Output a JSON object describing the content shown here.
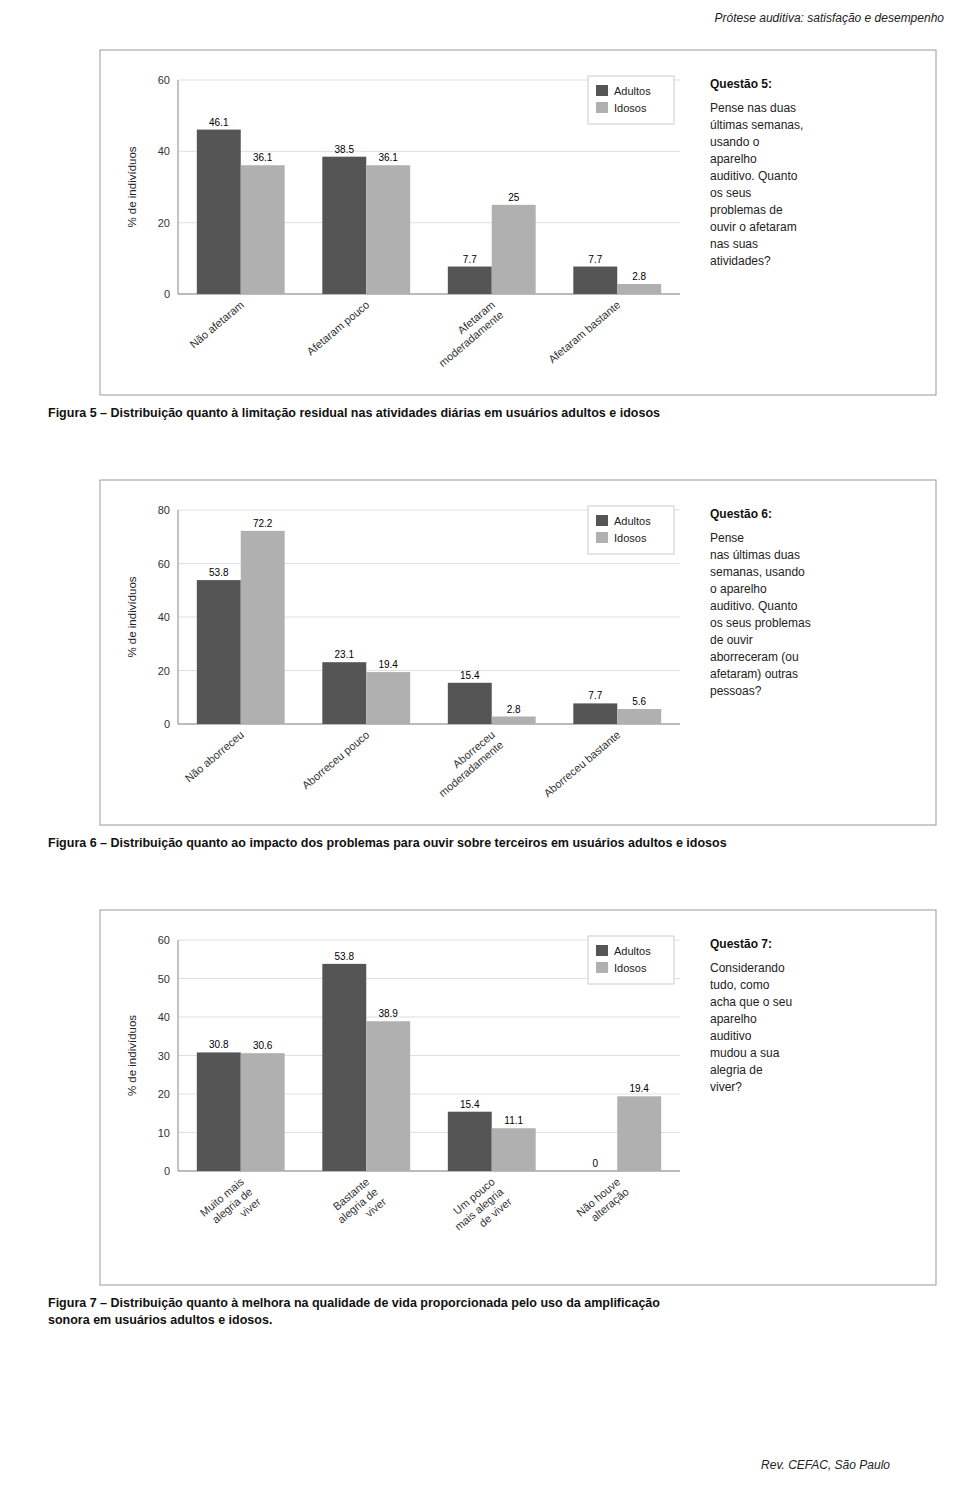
{
  "header": "Prótese auditiva: satisfação e desempenho",
  "footer": "Rev. CEFAC, São Paulo",
  "chart_data": [
    {
      "type": "bar",
      "title": "Questão 5:",
      "subtitle": "Pense nas duas\núltimas semanas,\nusando o\naparelho\nauditivo. Quanto\nos seus\nproblemas de\nouvir o afetaram\nnas suas\natividades?",
      "caption": "Figura 5 – Distribuição quanto à limitação residual nas atividades diárias em usuários adultos e idosos",
      "categories": [
        "Não afetaram",
        "Afetaram pouco",
        "Afetaram\nmoderadamente",
        "Afetaram bastante"
      ],
      "series": [
        {
          "name": "Adultos",
          "color": "#555555",
          "values": [
            46.1,
            38.5,
            7.7,
            7.7
          ]
        },
        {
          "name": "Idosos",
          "color": "#b0b0b0",
          "values": [
            36.1,
            36.1,
            25.0,
            2.8
          ]
        }
      ],
      "ylabel": "% de indivíduos",
      "ylim": [
        0,
        60
      ],
      "yticks": [
        0,
        20,
        40,
        60
      ],
      "grid": true,
      "legend": "upper right",
      "data_labels": true
    },
    {
      "type": "bar",
      "title": "Questão 6:",
      "subtitle": "Pense\nnas últimas duas\nsemanas, usando\no aparelho\nauditivo. Quanto\nos seus problemas\nde ouvir\naborreceram (ou\nafetaram) outras\npessoas?",
      "caption": "Figura 6 – Distribuição quanto ao impacto dos problemas para ouvir sobre terceiros em usuários adultos e idosos",
      "categories": [
        "Não aborreceu",
        "Aborreceu pouco",
        "Aborreceu\nmoderadamente",
        "Aborreceu bastante"
      ],
      "series": [
        {
          "name": "Adultos",
          "color": "#555555",
          "values": [
            53.8,
            23.1,
            15.4,
            7.7
          ]
        },
        {
          "name": "Idosos",
          "color": "#b0b0b0",
          "values": [
            72.2,
            19.4,
            2.8,
            5.6
          ]
        }
      ],
      "ylabel": "% de indivíduos",
      "ylim": [
        0,
        80
      ],
      "yticks": [
        0,
        20,
        40,
        60,
        80
      ],
      "grid": true,
      "legend": "upper right",
      "data_labels": true
    },
    {
      "type": "bar",
      "title": "Questão 7:",
      "subtitle": "Considerando\ntudo, como\nacha que o seu\naparelho\nauditivo\nmudou a sua\nalegria de\nviver?",
      "caption": "Figura 7 – Distribuição quanto à melhora na qualidade de vida proporcionada pelo uso da amplificação\nsonora em usuários adultos e idosos.",
      "categories": [
        "Muito mais\nalegria de\nviver",
        "Bastante\nalegria de\nviver",
        "Um pouco\nmais alegria\nde viver",
        "Não houve\nalteração"
      ],
      "series": [
        {
          "name": "Adultos",
          "color": "#555555",
          "values": [
            30.8,
            53.8,
            15.4,
            0
          ]
        },
        {
          "name": "Idosos",
          "color": "#b0b0b0",
          "values": [
            30.6,
            38.9,
            11.1,
            19.4
          ]
        }
      ],
      "ylabel": "% de indivíduos",
      "ylim": [
        0,
        60
      ],
      "yticks": [
        0,
        10,
        20,
        30,
        40,
        50,
        60
      ],
      "grid": true,
      "legend": "upper right",
      "data_labels": true
    }
  ]
}
